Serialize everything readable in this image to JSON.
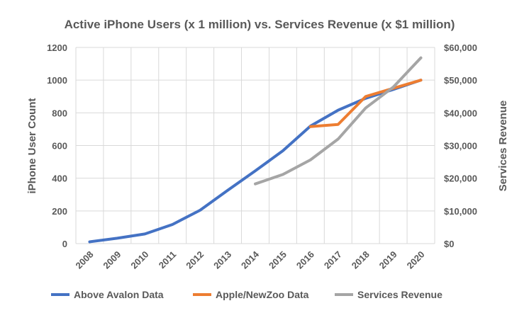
{
  "chart_data": {
    "type": "line",
    "title": "Active iPhone Users (x 1 million) vs. Services Revenue (x $1 million)",
    "xlabel": "",
    "ylabel": "iPhone  User Count",
    "y2label": "Services Revenue",
    "categories": [
      "2008",
      "2009",
      "2010",
      "2011",
      "2012",
      "2013",
      "2014",
      "2015",
      "2016",
      "2017",
      "2018",
      "2019",
      "2020"
    ],
    "ylim": [
      0,
      1200
    ],
    "yticks": [
      "0",
      "200",
      "400",
      "600",
      "800",
      "1000",
      "1200"
    ],
    "y2lim": [
      0,
      60000
    ],
    "y2ticks": [
      "$0",
      "$10,000",
      "$20,000",
      "$30,000",
      "$40,000",
      "$50,000",
      "$60,000"
    ],
    "grid": true,
    "legend_position": "bottom",
    "series": [
      {
        "name": "Above Avalon Data",
        "axis": "left",
        "color": "#4472C4",
        "values": [
          11,
          33,
          59,
          117,
          204,
          326,
          445,
          568,
          719,
          816,
          889,
          943,
          1000
        ]
      },
      {
        "name": "Apple/NewZoo Data",
        "axis": "left",
        "color": "#ED7D31",
        "values": [
          null,
          null,
          null,
          null,
          null,
          null,
          null,
          null,
          716,
          729,
          900,
          950,
          1000
        ]
      },
      {
        "name": "Services Revenue",
        "axis": "right",
        "color": "#A5A5A5",
        "values": [
          null,
          null,
          null,
          null,
          null,
          null,
          18260,
          21140,
          25620,
          31970,
          41500,
          47870,
          56820
        ]
      }
    ]
  }
}
